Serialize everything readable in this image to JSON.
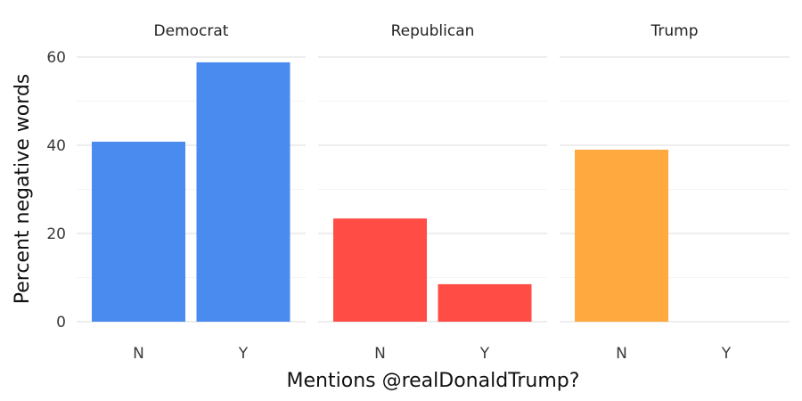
{
  "chart_data": {
    "type": "bar",
    "facets": [
      {
        "title": "Democrat",
        "color": "#4a8bf0",
        "categories": [
          "N",
          "Y"
        ],
        "values": [
          40.8,
          58.8
        ]
      },
      {
        "title": "Republican",
        "color": "#ff4d45",
        "categories": [
          "N",
          "Y"
        ],
        "values": [
          23.4,
          8.5
        ]
      },
      {
        "title": "Trump",
        "color": "#ffa93e",
        "categories": [
          "N",
          "Y"
        ],
        "values": [
          39.0,
          0
        ]
      }
    ],
    "xlabel": "Mentions @realDonaldTrump?",
    "ylabel": "Percent negative words",
    "ylim": [
      0,
      60
    ],
    "yticks": [
      0,
      20,
      40,
      60
    ],
    "grid": true,
    "legend": "none"
  }
}
